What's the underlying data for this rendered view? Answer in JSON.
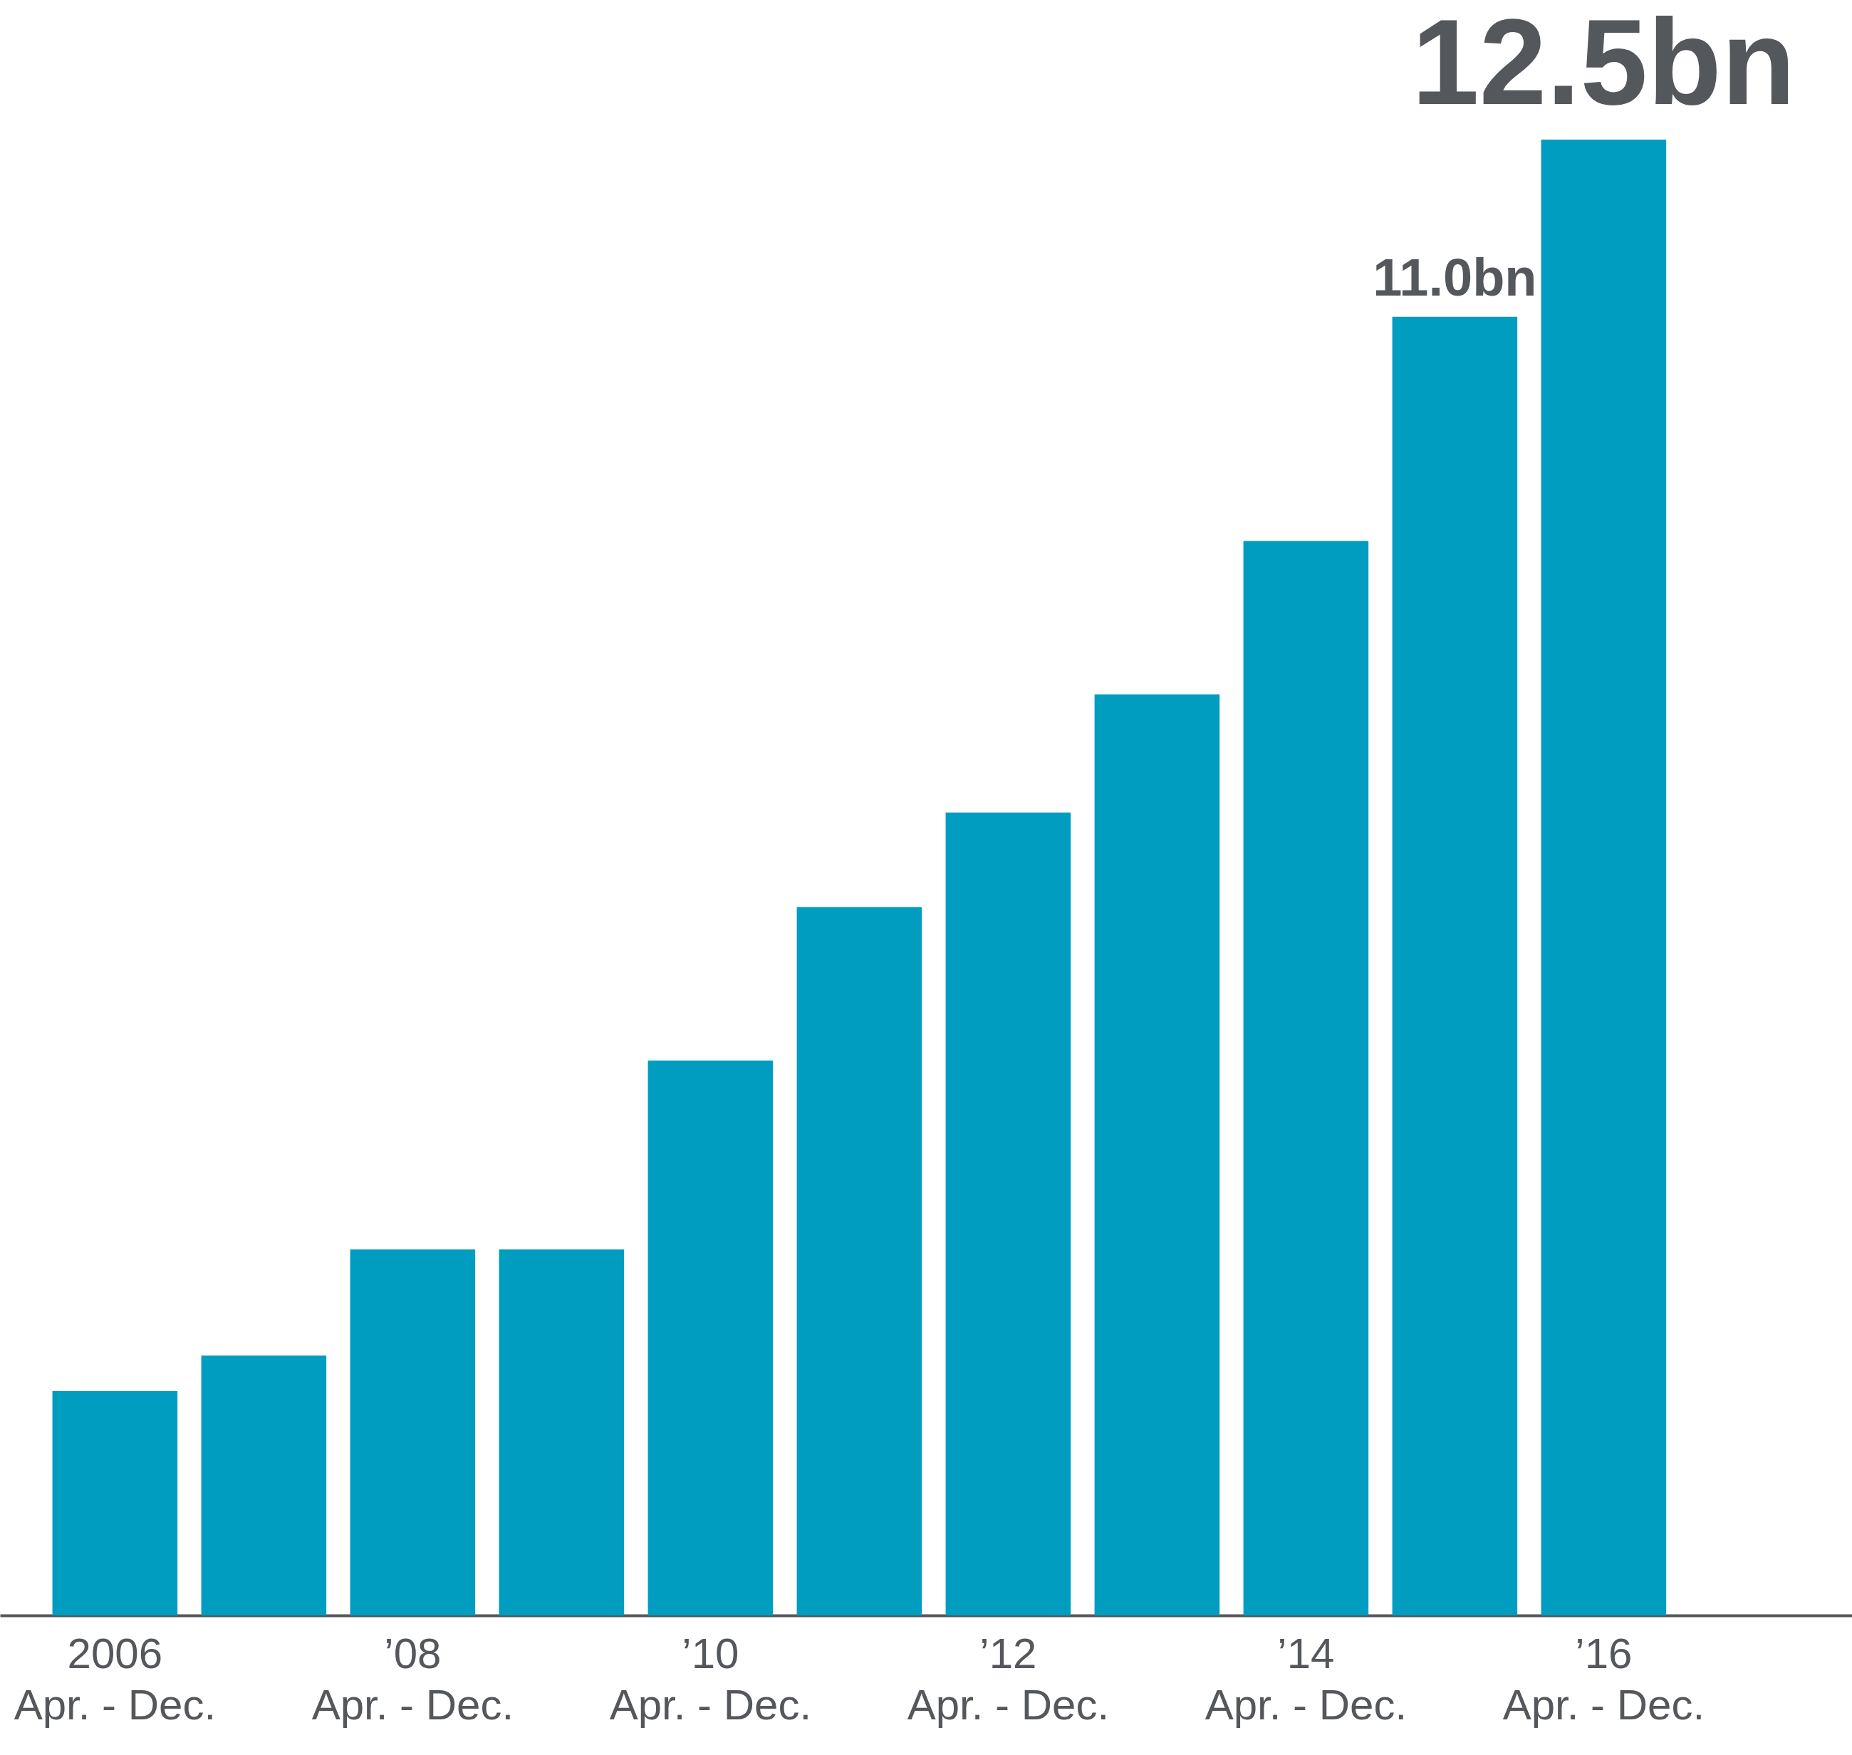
{
  "chart_data": {
    "type": "bar",
    "categories": [
      "2006\nApr. - Dec.",
      null,
      "’08\nApr. - Dec.",
      null,
      "’10\nApr. - Dec.",
      null,
      "’12\nApr. - Dec.",
      null,
      "’14\nApr. - Dec.",
      null,
      "’16\nApr. - Dec."
    ],
    "values": [
      1.9,
      2.2,
      3.1,
      3.1,
      4.7,
      6.0,
      6.8,
      7.8,
      9.1,
      11.0,
      12.5
    ],
    "value_labels": [
      null,
      null,
      null,
      null,
      null,
      null,
      null,
      null,
      null,
      "11.0bn",
      "12.5bn"
    ],
    "color": "#009dc0"
  }
}
